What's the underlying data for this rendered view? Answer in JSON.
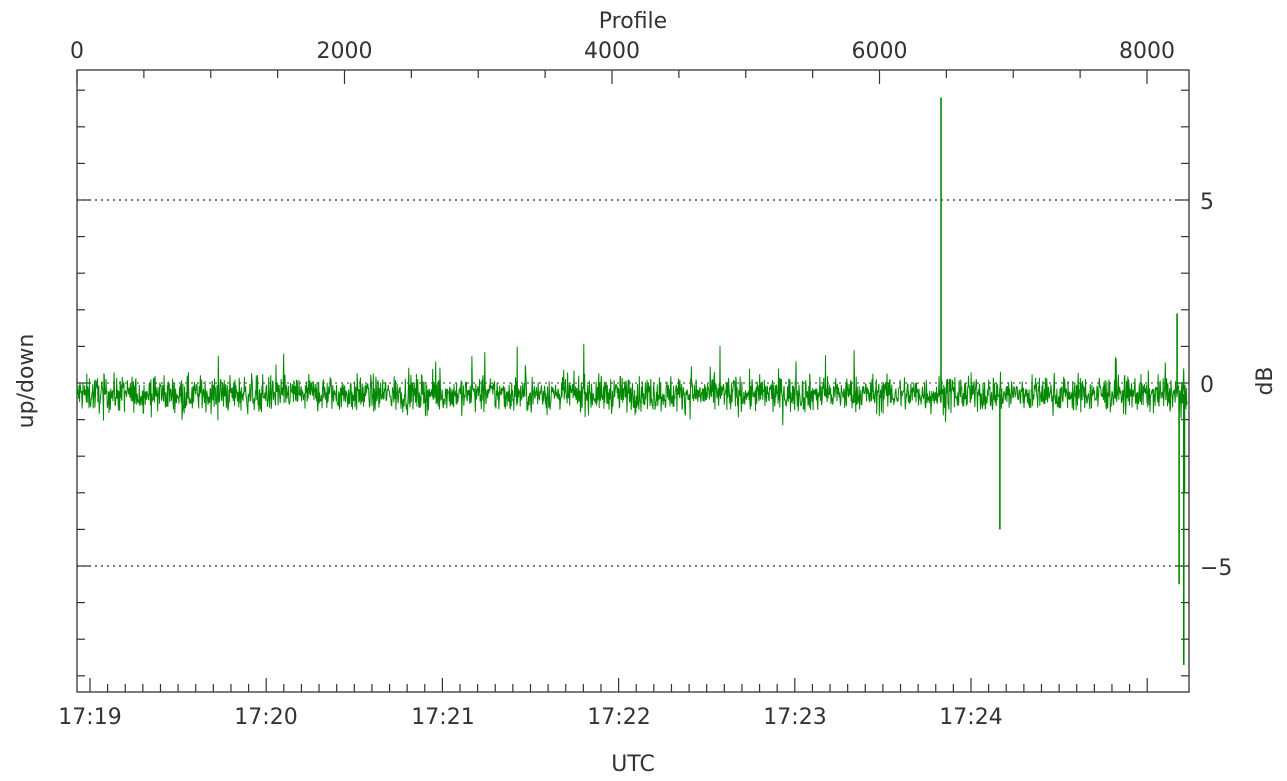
{
  "chart_data": {
    "type": "line",
    "title": "",
    "xlabel": "UTC",
    "x2label": "Profile",
    "ylabel": "up/down",
    "y2label": "dB",
    "x_ticks": [
      "17:19",
      "17:20",
      "17:21",
      "17:22",
      "17:23",
      "17:24"
    ],
    "x2_ticks": [
      "0",
      "2000",
      "4000",
      "6000",
      "8000"
    ],
    "y2_ticks": [
      "5",
      "0",
      "−5"
    ],
    "ylim": [
      -8.4,
      8.4
    ],
    "profile_range": [
      0,
      8300
    ],
    "grid": "dotted lines at -5 and 5",
    "series": [
      {
        "color": "#008800",
        "noise_level": 0.35,
        "spikes": [
          {
            "profile": 6460,
            "value": 7.8
          },
          {
            "profile": 6900,
            "value": -4.0
          },
          {
            "profile": 8240,
            "value": -5.5
          },
          {
            "profile": 8275,
            "value": -7.7
          },
          {
            "profile": 8225,
            "value": 1.9
          },
          {
            "profile": 8280,
            "value": -3.0
          }
        ]
      }
    ]
  }
}
